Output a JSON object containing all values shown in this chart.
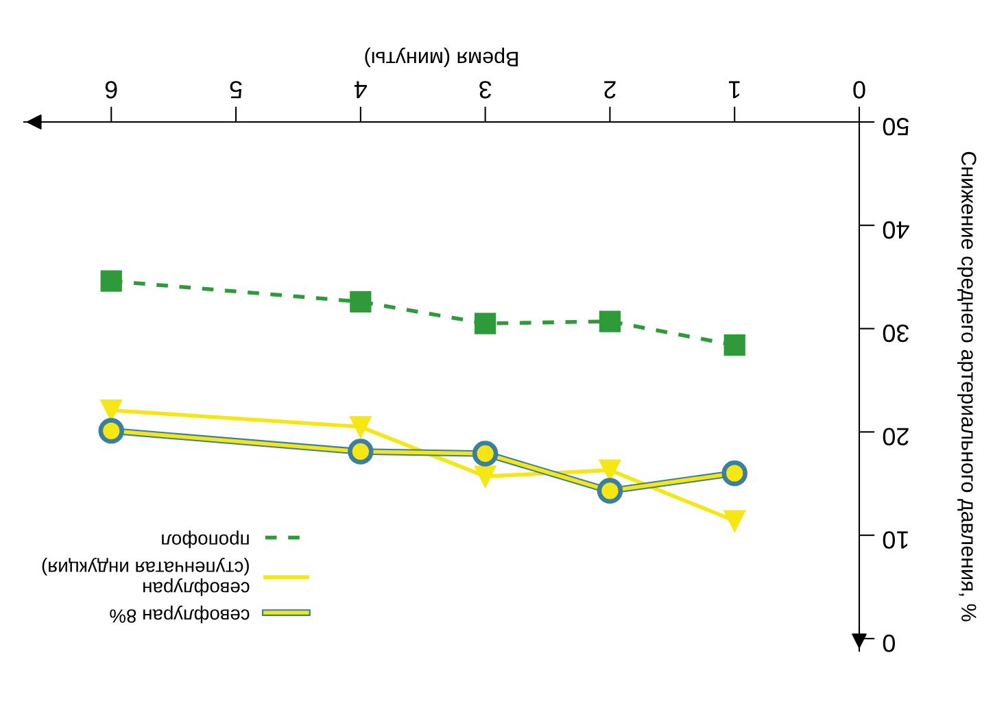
{
  "chart_data": {
    "type": "line",
    "xlabel": "Время (минуты)",
    "ylabel": "Снижение среднего артериального давления, %",
    "x": [
      1,
      2,
      3,
      4,
      6
    ],
    "xlim": [
      6.7,
      0
    ],
    "xticks": [
      6,
      5,
      4,
      3,
      2,
      1,
      0
    ],
    "ylim": [
      -1.2,
      50
    ],
    "yticks": [
      0,
      10,
      20,
      30,
      40,
      50
    ],
    "grid": false,
    "legend": "bottom left",
    "series": [
      {
        "name": "пропофол",
        "color": "#2e9a3a",
        "line_style": "dashed",
        "marker": "square",
        "values": [
          28.4,
          30.7,
          30.5,
          32.6,
          34.6
        ]
      },
      {
        "name": "севофлуран\n(ступенчатая индукция)",
        "color": "#f5e614",
        "line_style": "solid",
        "marker": "triangle",
        "values": [
          11.4,
          16.3,
          15.7,
          20.5,
          22.1
        ]
      },
      {
        "name": "севофлуран 8%",
        "color": "#f5e614",
        "line_style": "solid",
        "marker": "circle",
        "values": [
          16.0,
          14.3,
          17.9,
          18.1,
          20.1
        ]
      }
    ]
  }
}
